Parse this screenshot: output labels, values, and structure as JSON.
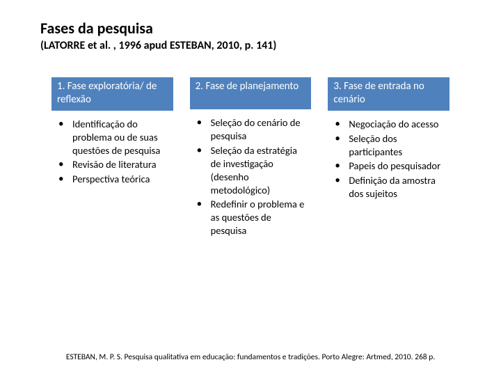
{
  "header": {
    "title": "Fases da pesquisa",
    "subtitle": "(LATORRE et al. , 1996 apud ESTEBAN, 2010, p. 141)"
  },
  "table": {
    "type": "columns",
    "header_bg": "#4f81bd",
    "header_text_color": "#ffffff",
    "body_text_color": "#000000",
    "columns": [
      {
        "header": "1. Fase exploratória/ de reflexão",
        "items": [
          "Identificação do problema ou de suas questões de pesquisa",
          "Revisão de literatura",
          "Perspectiva teórica"
        ]
      },
      {
        "header": "2. Fase de planejamento",
        "items": [
          "Seleção do cenário de pesquisa",
          "Seleção da estratégia de investigação (desenho metodológico)",
          "Redefinir o problema e as questões de pesquisa"
        ]
      },
      {
        "header": "3. Fase de entrada no cenário",
        "items": [
          "Negociação do acesso",
          "Seleção dos participantes",
          "Papeis do pesquisador",
          "Definição da amostra dos sujeitos"
        ]
      }
    ]
  },
  "footnote": "ESTEBAN, M. P. S. Pesquisa qualitativa em educação: fundamentos e tradições. Porto Alegre: Artmed, 2010. 268 p."
}
